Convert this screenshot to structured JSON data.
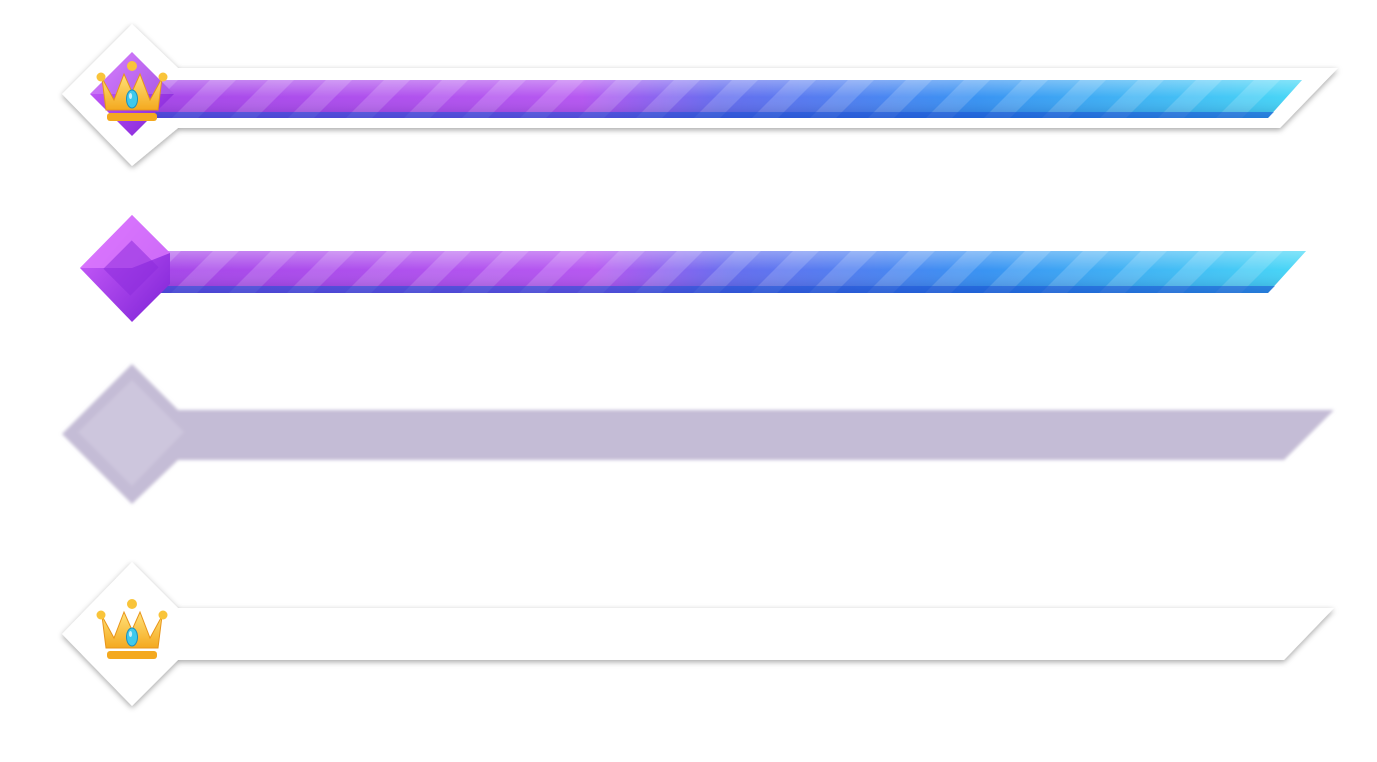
{
  "sheet": {
    "bars": [
      {
        "variant": "full-framed",
        "fill": 1.0,
        "has_frame": true,
        "has_gem": true,
        "gem_icon": "crown-icon"
      },
      {
        "variant": "fill-only",
        "fill": 1.0,
        "has_frame": false,
        "has_gem": true,
        "gem_icon": "none"
      },
      {
        "variant": "track-empty",
        "fill": 0.0,
        "has_frame": false,
        "has_gem": false,
        "gem_icon": "none"
      },
      {
        "variant": "frame-with-crown",
        "fill": 0.0,
        "has_frame": true,
        "has_gem": false,
        "gem_icon": "crown-icon"
      }
    ],
    "colors": {
      "fill_start": "#a23ee8",
      "fill_mid": "#3d7ff0",
      "fill_end": "#3fd6f6",
      "gem_purple": "#9a35e3",
      "track": "#c4bcd6",
      "frame": "#ffffff",
      "crown_gold": "#f9c43a",
      "crown_jewel": "#3fc9ec"
    }
  }
}
